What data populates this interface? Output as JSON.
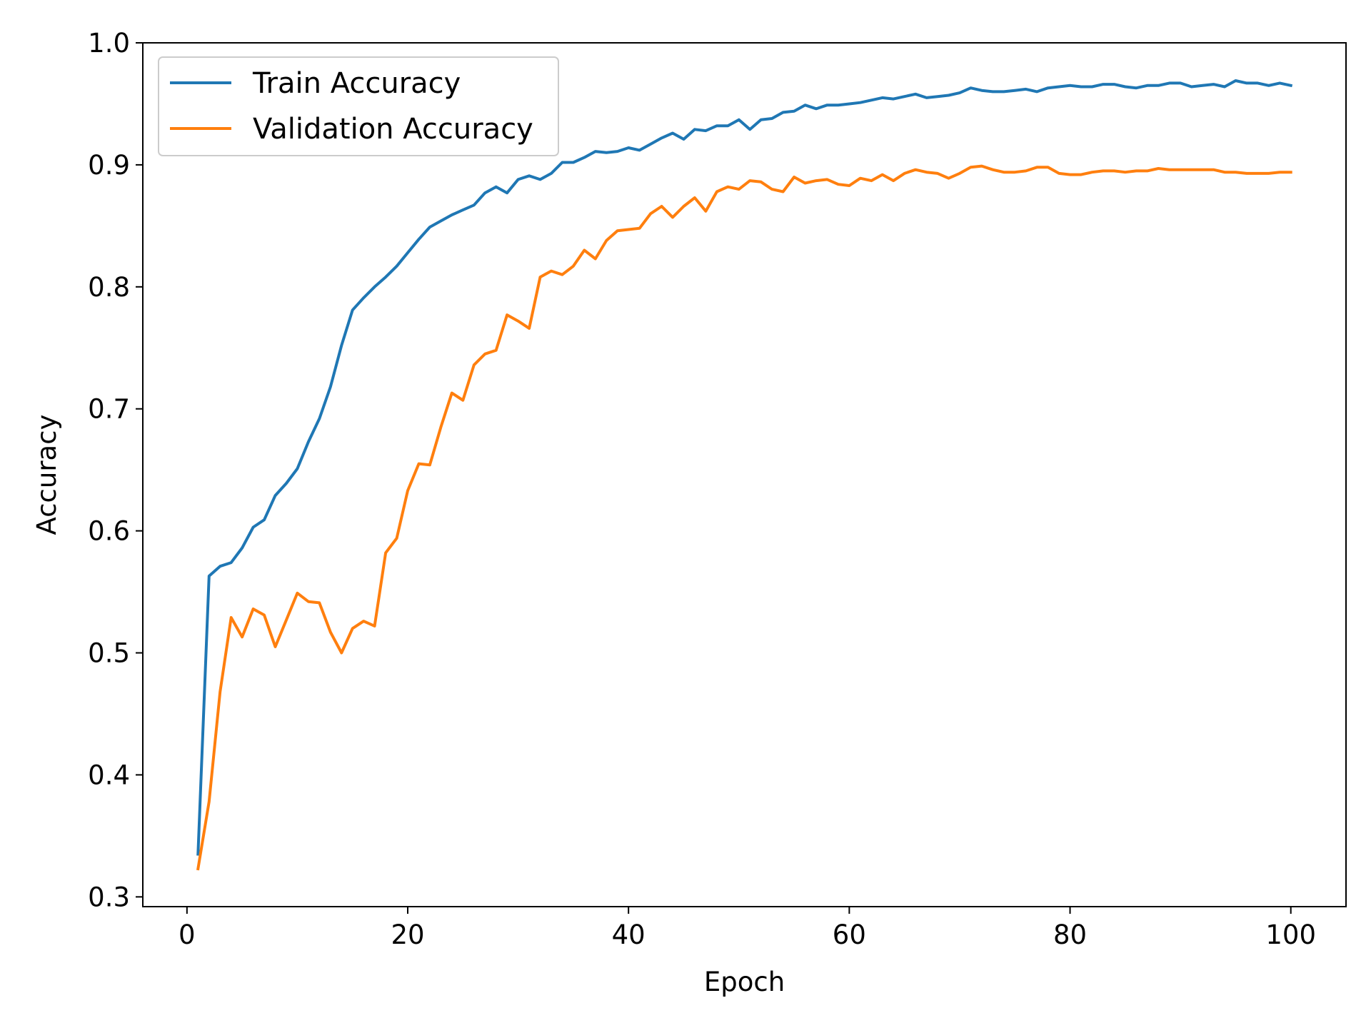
{
  "chart_data": {
    "type": "line",
    "title": "",
    "xlabel": "Epoch",
    "ylabel": "Accuracy",
    "xlim": [
      -4,
      105
    ],
    "ylim": [
      0.292,
      1.0
    ],
    "xticks": [
      0,
      20,
      40,
      60,
      80,
      100
    ],
    "yticks": [
      0.3,
      0.4,
      0.5,
      0.6,
      0.7,
      0.8,
      0.9,
      1.0
    ],
    "xtick_labels": [
      "0",
      "20",
      "40",
      "60",
      "80",
      "100"
    ],
    "ytick_labels": [
      "0.3",
      "0.4",
      "0.5",
      "0.6",
      "0.7",
      "0.8",
      "0.9",
      "1.0"
    ],
    "grid": false,
    "legend_position": "top-left",
    "x": [
      1,
      2,
      3,
      4,
      5,
      6,
      7,
      8,
      9,
      10,
      11,
      12,
      13,
      14,
      15,
      16,
      17,
      18,
      19,
      20,
      21,
      22,
      23,
      24,
      25,
      26,
      27,
      28,
      29,
      30,
      31,
      32,
      33,
      34,
      35,
      36,
      37,
      38,
      39,
      40,
      41,
      42,
      43,
      44,
      45,
      46,
      47,
      48,
      49,
      50,
      51,
      52,
      53,
      54,
      55,
      56,
      57,
      58,
      59,
      60,
      61,
      62,
      63,
      64,
      65,
      66,
      67,
      68,
      69,
      70,
      71,
      72,
      73,
      74,
      75,
      76,
      77,
      78,
      79,
      80,
      81,
      82,
      83,
      84,
      85,
      86,
      87,
      88,
      89,
      90,
      91,
      92,
      93,
      94,
      95,
      96,
      97,
      98,
      99,
      100
    ],
    "series": [
      {
        "name": "Train Accuracy",
        "color": "#1f77b4",
        "values": [
          0.335,
          0.563,
          0.571,
          0.574,
          0.586,
          0.603,
          0.609,
          0.629,
          0.639,
          0.651,
          0.673,
          0.692,
          0.718,
          0.752,
          0.781,
          0.791,
          0.8,
          0.808,
          0.817,
          0.828,
          0.839,
          0.849,
          0.854,
          0.859,
          0.863,
          0.867,
          0.877,
          0.882,
          0.877,
          0.888,
          0.891,
          0.888,
          0.893,
          0.902,
          0.902,
          0.906,
          0.911,
          0.91,
          0.911,
          0.914,
          0.912,
          0.917,
          0.922,
          0.926,
          0.921,
          0.929,
          0.928,
          0.932,
          0.932,
          0.937,
          0.929,
          0.937,
          0.938,
          0.943,
          0.944,
          0.949,
          0.946,
          0.949,
          0.949,
          0.95,
          0.951,
          0.953,
          0.955,
          0.954,
          0.956,
          0.958,
          0.955,
          0.956,
          0.957,
          0.959,
          0.963,
          0.961,
          0.96,
          0.96,
          0.961,
          0.962,
          0.96,
          0.963,
          0.964,
          0.965,
          0.964,
          0.964,
          0.966,
          0.966,
          0.964,
          0.963,
          0.965,
          0.965,
          0.967,
          0.967,
          0.964,
          0.965,
          0.966,
          0.964,
          0.969,
          0.967,
          0.967,
          0.965,
          0.967,
          0.965
        ]
      },
      {
        "name": "Validation Accuracy",
        "color": "#ff7f0e",
        "values": [
          0.323,
          0.378,
          0.468,
          0.529,
          0.513,
          0.536,
          0.531,
          0.505,
          0.527,
          0.549,
          0.542,
          0.541,
          0.517,
          0.5,
          0.52,
          0.526,
          0.522,
          0.582,
          0.594,
          0.633,
          0.655,
          0.654,
          0.685,
          0.713,
          0.707,
          0.736,
          0.745,
          0.748,
          0.777,
          0.772,
          0.766,
          0.808,
          0.813,
          0.81,
          0.817,
          0.83,
          0.823,
          0.838,
          0.846,
          0.847,
          0.848,
          0.86,
          0.866,
          0.857,
          0.866,
          0.873,
          0.862,
          0.878,
          0.882,
          0.88,
          0.887,
          0.886,
          0.88,
          0.878,
          0.89,
          0.885,
          0.887,
          0.888,
          0.884,
          0.883,
          0.889,
          0.887,
          0.892,
          0.887,
          0.893,
          0.896,
          0.894,
          0.893,
          0.889,
          0.893,
          0.898,
          0.899,
          0.896,
          0.894,
          0.894,
          0.895,
          0.898,
          0.898,
          0.893,
          0.892,
          0.892,
          0.894,
          0.895,
          0.895,
          0.894,
          0.895,
          0.895,
          0.897,
          0.896,
          0.896,
          0.896,
          0.896,
          0.896,
          0.894,
          0.894,
          0.893,
          0.893,
          0.893,
          0.894,
          0.894
        ]
      }
    ]
  }
}
